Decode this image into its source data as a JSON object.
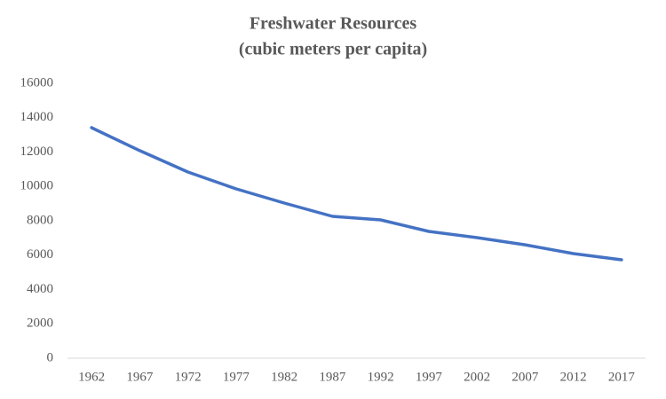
{
  "chart_data": {
    "type": "line",
    "title": "Freshwater Resources",
    "subtitle": "(cubic meters per capita)",
    "categories": [
      "1962",
      "1967",
      "1972",
      "1977",
      "1982",
      "1987",
      "1992",
      "1997",
      "2002",
      "2007",
      "2012",
      "2017"
    ],
    "series": [
      {
        "name": "Freshwater Resources",
        "color": "#4472c4",
        "values": [
          13420,
          12080,
          10840,
          9860,
          9030,
          8260,
          8050,
          7380,
          7020,
          6600,
          6090,
          5730
        ]
      }
    ],
    "ylim": [
      0,
      16000
    ],
    "yticks": [
      0,
      2000,
      4000,
      6000,
      8000,
      10000,
      12000,
      14000,
      16000
    ],
    "grid": false
  }
}
